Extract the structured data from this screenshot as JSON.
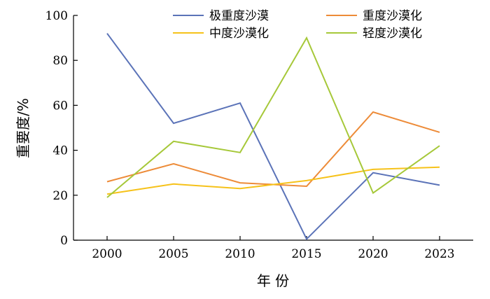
{
  "chart_data": {
    "type": "line",
    "xlabel": "年 份",
    "ylabel": "重要度/%",
    "ylim": [
      0,
      100
    ],
    "yticks": [
      0,
      20,
      40,
      60,
      80,
      100
    ],
    "x": [
      2000,
      2005,
      2010,
      2015,
      2020,
      2023
    ],
    "x_labels": [
      "2000",
      "2005",
      "2010",
      "2015",
      "2020",
      "2023"
    ],
    "legend_position": "top-right",
    "grid": false,
    "series": [
      {
        "name": "极重度沙漠",
        "color": "#5b73b8",
        "values": [
          92,
          52,
          61,
          0.5,
          30,
          24.5
        ]
      },
      {
        "name": "重度沙漠化",
        "color": "#ed8b38",
        "values": [
          26,
          34,
          25.5,
          24,
          57,
          48
        ]
      },
      {
        "name": "中度沙漠化",
        "color": "#f6c21a",
        "values": [
          20.5,
          25,
          23,
          26.5,
          31.5,
          32.5
        ]
      },
      {
        "name": "轻度沙漠化",
        "color": "#a6c839",
        "values": [
          19,
          44,
          39,
          90,
          21,
          42
        ]
      }
    ]
  }
}
